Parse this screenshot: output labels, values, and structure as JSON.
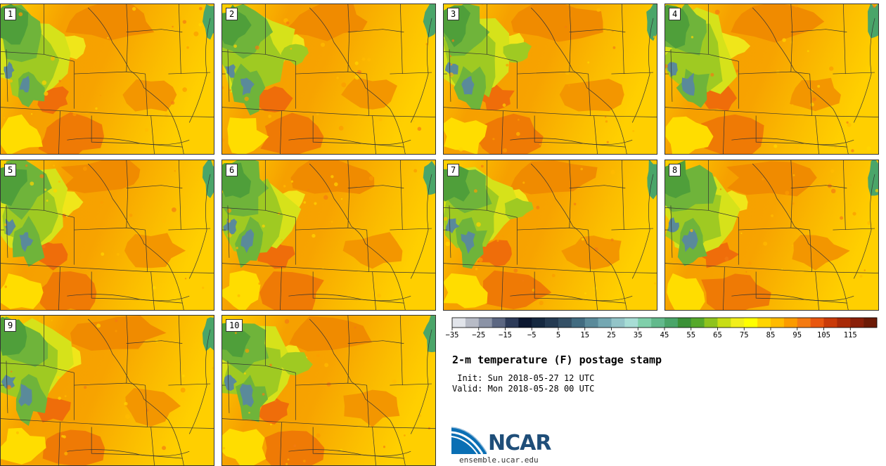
{
  "product": {
    "title": "2-m temperature (F) postage stamp",
    "init_label": " Init: Sun 2018-05-27 12 UTC",
    "valid_label": "Valid: Mon 2018-05-28 00 UTC"
  },
  "members": [
    "1",
    "2",
    "3",
    "4",
    "5",
    "6",
    "7",
    "8",
    "9",
    "10"
  ],
  "colorbar": {
    "tick_labels": [
      "−35",
      "−25",
      "−15",
      "−5",
      "5",
      "15",
      "25",
      "35",
      "45",
      "55",
      "65",
      "75",
      "85",
      "95",
      "105",
      "115"
    ],
    "colors": [
      "#e1e4ea",
      "#b7bbc6",
      "#8b93a6",
      "#5b6681",
      "#2c3a58",
      "#0b1730",
      "#152840",
      "#243a52",
      "#345066",
      "#416b80",
      "#5a8a9a",
      "#74a7b2",
      "#93c4c8",
      "#a7ddd5",
      "#7fcfaa",
      "#62b98c",
      "#4aa569",
      "#3b9137",
      "#55a82b",
      "#8ec31e",
      "#c8dd15",
      "#f2ee1b",
      "#ffff00",
      "#ffd500",
      "#ffbb00",
      "#fb9b00",
      "#f47a12",
      "#e8560f",
      "#c93a09",
      "#a82a08",
      "#8a1f09",
      "#6c1a06"
    ]
  },
  "logo": {
    "name": "NCAR",
    "url": "ensemble.ucar.edu"
  }
}
